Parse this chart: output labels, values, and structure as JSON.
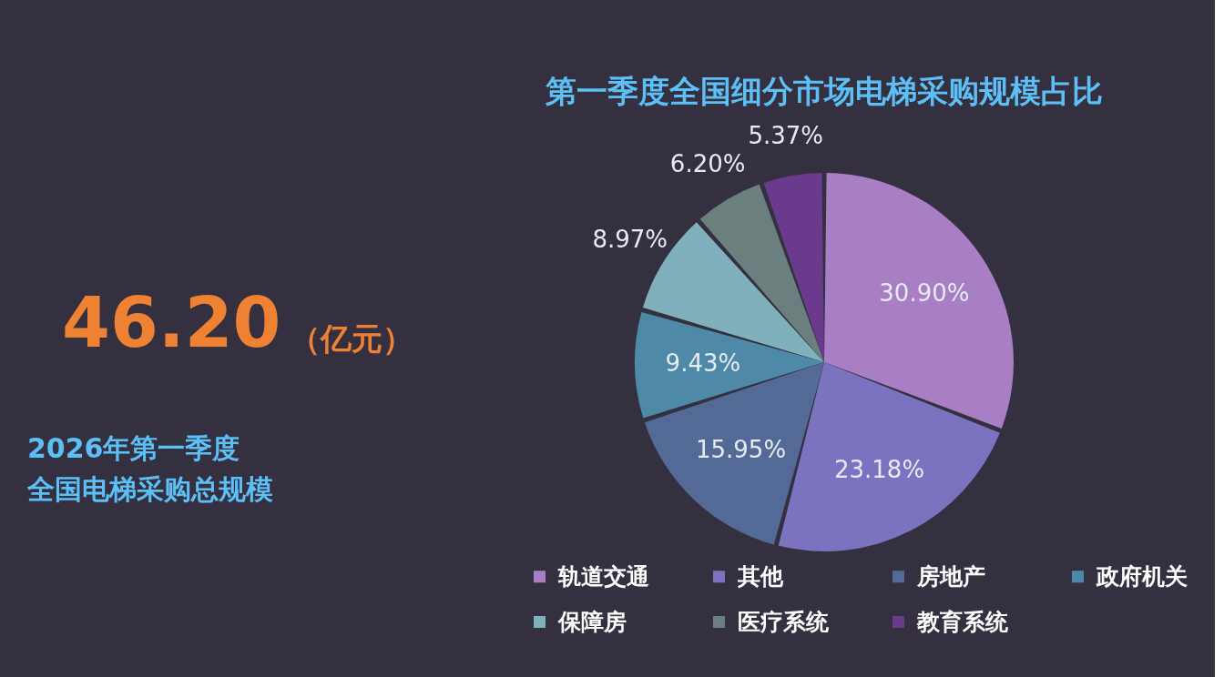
{
  "chart_data": [
    {
      "type": "other",
      "annotations": [
        "46.20",
        "（亿元）",
        "2026年第一季度",
        "全国电梯采购总规模"
      ]
    },
    {
      "type": "pie",
      "title": "第一季度全国细分市场电梯采购规模占比",
      "categories": [
        "轨道交通",
        "其他",
        "房地产",
        "政府机关",
        "保障房",
        "医疗系统",
        "教育系统"
      ],
      "values": [
        30.9,
        23.18,
        15.95,
        9.43,
        8.97,
        6.2,
        5.37
      ],
      "value_labels": [
        "30.90%",
        "23.18%",
        "15.95%",
        "9.43%",
        "8.97%",
        "6.20%",
        "5.37%"
      ],
      "colors": [
        "#a87fc4",
        "#7b72c0",
        "#546a96",
        "#4e8aa8",
        "#7fb0bc",
        "#6b807e",
        "#6a3a8c"
      ],
      "legend": "bottom"
    }
  ]
}
